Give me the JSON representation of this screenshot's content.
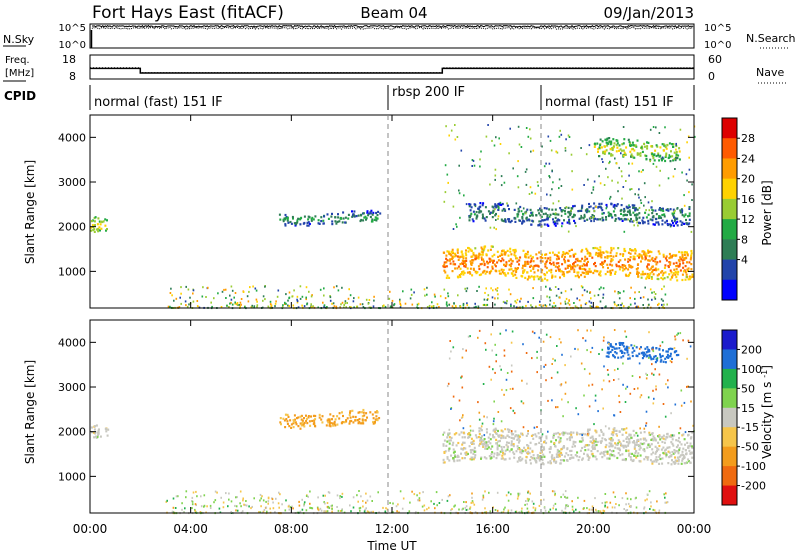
{
  "header": {
    "title": "Fort Hays East (fitACF)",
    "beam": "Beam 04",
    "date": "09/Jan/2013"
  },
  "noise_panel": {
    "left_label": "N.Sky",
    "left_ticks": [
      "10^5",
      "10^0"
    ],
    "right_label": "N.Search",
    "right_ticks": [
      "10^5",
      "10^0"
    ]
  },
  "freq_panel": {
    "left_label_1": "Freq.",
    "left_label_2": "[MHz]",
    "left_ticks": [
      "18",
      "8"
    ],
    "right_label": "Nave",
    "right_ticks": [
      "60",
      "0"
    ]
  },
  "cpid_panel": {
    "label": "CPID",
    "modes": [
      "normal (fast) 151 IF",
      "rbsp 200 IF",
      "normal (fast) 151 IF"
    ]
  },
  "x_axis": {
    "label": "Time UT",
    "ticks": [
      "00:00",
      "04:00",
      "08:00",
      "12:00",
      "16:00",
      "20:00",
      "00:00"
    ]
  },
  "power_colorbar": {
    "label": "Power [dB]",
    "ticks": [
      "28",
      "24",
      "20",
      "16",
      "12",
      "8",
      "4"
    ],
    "colors": [
      "#dd0000",
      "#ff5a00",
      "#ff9c00",
      "#ffd200",
      "#99cc33",
      "#22aa44",
      "#2e7d55",
      "#2244aa",
      "#0000ff"
    ]
  },
  "velocity_colorbar": {
    "label": "Velocity [m s^-1]",
    "ticks": [
      "200",
      "100",
      "50",
      "15",
      "-15",
      "-50",
      "-100",
      "-200"
    ],
    "colors": [
      "#1b1bcc",
      "#1f6fd6",
      "#22b14c",
      "#7fd34e",
      "#c8c8c0",
      "#f6c54a",
      "#f39c1c",
      "#ef6a10",
      "#e01010"
    ]
  },
  "y_axis": {
    "label": "Slant Range [km]",
    "ticks": [
      "4000",
      "3000",
      "2000",
      "1000"
    ]
  },
  "chart_data": [
    {
      "type": "line",
      "name": "noise",
      "x": [
        0,
        24
      ],
      "series": [
        {
          "values": [
            30000,
            30000
          ]
        },
        {
          "values": [
            12000,
            12000
          ]
        }
      ],
      "ylim": [
        1,
        100000
      ],
      "yscale": "log"
    },
    {
      "type": "line",
      "name": "frequency",
      "x": [
        0,
        2,
        2,
        14,
        14,
        24
      ],
      "series": [
        {
          "values": [
            12.4,
            12.4,
            10.5,
            10.5,
            12.4,
            12.4
          ]
        },
        {
          "values_nave": [
            28,
            28,
            16,
            16,
            28,
            28
          ]
        }
      ],
      "ylim": [
        8,
        18
      ]
    },
    {
      "type": "heatmap",
      "name": "power",
      "xlim": [
        0,
        24
      ],
      "ylim": [
        180,
        4500
      ],
      "zlim": [
        0,
        30
      ],
      "features": [
        {
          "t0": 14.0,
          "t1": 23.9,
          "r_center": 1200,
          "r_width": 650,
          "level": 22
        },
        {
          "t0": 7.5,
          "t1": 11.5,
          "r_center": 2200,
          "r_width": 250,
          "level": 7
        },
        {
          "t0": 0.0,
          "t1": 0.7,
          "r_center": 2050,
          "r_width": 350,
          "level": 14
        },
        {
          "t0": 20.0,
          "t1": 23.4,
          "r_center": 3750,
          "r_width": 400,
          "level": 14
        },
        {
          "t0": 15.0,
          "t1": 23.8,
          "r_center": 2300,
          "r_width": 400,
          "level": 6
        }
      ]
    },
    {
      "type": "heatmap",
      "name": "velocity",
      "xlim": [
        0,
        24
      ],
      "ylim": [
        180,
        4500
      ],
      "zlim": [
        -200,
        200
      ],
      "features": [
        {
          "t0": 14.0,
          "t1": 23.9,
          "r_center": 1700,
          "r_width": 700,
          "level": 0
        },
        {
          "t0": 7.5,
          "t1": 11.5,
          "r_center": 2300,
          "r_width": 300,
          "level": -60
        },
        {
          "t0": 0.0,
          "t1": 0.7,
          "r_center": 2000,
          "r_width": 300,
          "level": 0
        },
        {
          "t0": 20.5,
          "t1": 23.4,
          "r_center": 3800,
          "r_width": 350,
          "level": 180
        }
      ]
    }
  ]
}
